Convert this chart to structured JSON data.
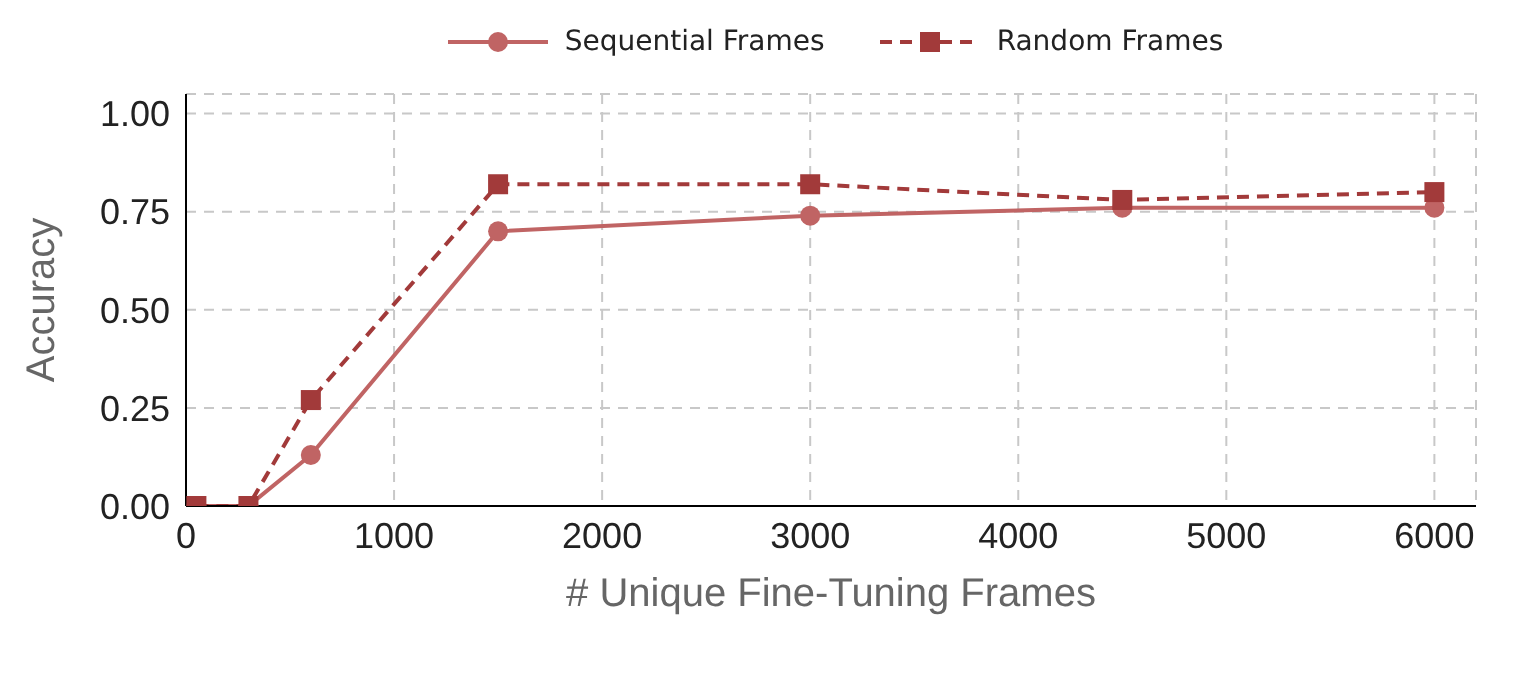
{
  "chart_data": {
    "type": "line",
    "xlabel": "# Unique Fine-Tuning Frames",
    "ylabel": "Accuracy",
    "x": [
      50,
      300,
      600,
      1500,
      3000,
      4500,
      6000
    ],
    "series": [
      {
        "name": "Sequential Frames",
        "color": "#c06464",
        "values": [
          0,
          0,
          0.13,
          0.7,
          0.74,
          0.76,
          0.76
        ],
        "marker": "circle",
        "line_style": "solid"
      },
      {
        "name": "Random Frames",
        "color": "#a23a3a",
        "values": [
          0,
          0,
          0.27,
          0.82,
          0.82,
          0.78,
          0.8
        ],
        "marker": "square",
        "line_style": "dashed"
      }
    ],
    "xlim": [
      0,
      6200
    ],
    "xticks": [
      0,
      1000,
      2000,
      3000,
      4000,
      5000,
      6000
    ],
    "ylim": [
      0,
      1.05
    ],
    "yticks": [
      {
        "value": 0,
        "label": "0.00"
      },
      0.25,
      {
        "value": 0.5,
        "label": "0.50"
      },
      0.75,
      {
        "value": 1,
        "label": "1.00"
      }
    ],
    "grid": true,
    "legend": "top"
  }
}
